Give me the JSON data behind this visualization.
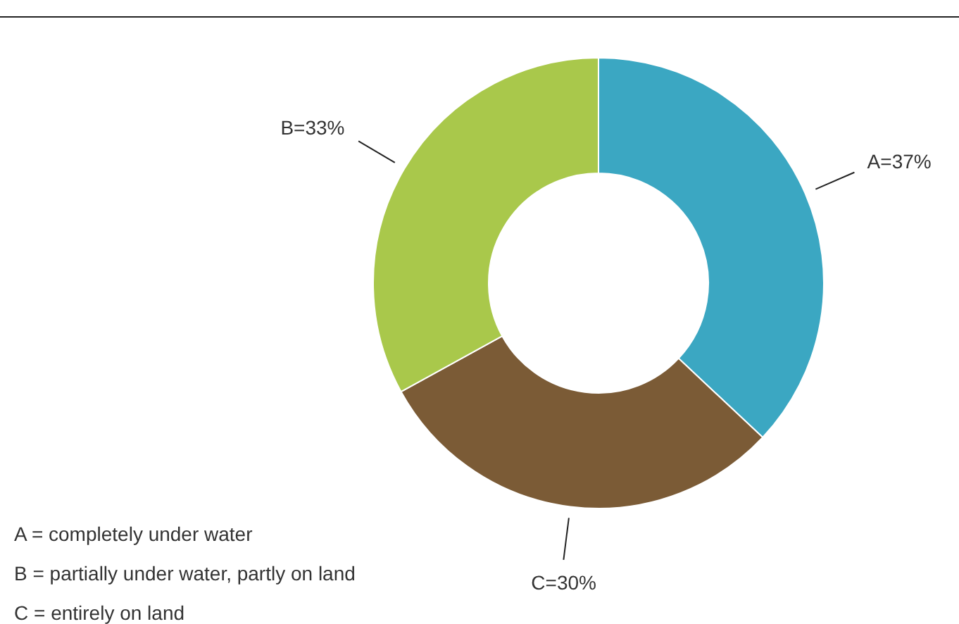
{
  "chart_data": {
    "type": "donut",
    "categories": [
      "A",
      "C",
      "B"
    ],
    "values": [
      37,
      30,
      33
    ],
    "colors": [
      "#3ba7c2",
      "#7b5b36",
      "#a9c84b"
    ],
    "value_labels": [
      "=37%",
      "=30%",
      "=33%"
    ],
    "annotations": [
      "A = completely under water",
      "B = partially under water, partly on land",
      "C = entirely on land"
    ]
  }
}
